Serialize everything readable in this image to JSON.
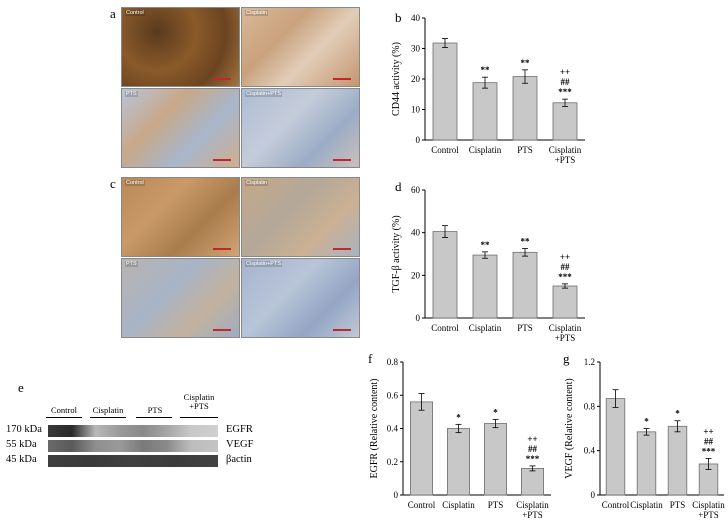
{
  "panels": {
    "a": "a",
    "b": "b",
    "c": "c",
    "d": "d",
    "e": "e",
    "f": "f",
    "g": "g"
  },
  "micro_labels": {
    "a": [
      "Control",
      "Cisplatin",
      "PTS",
      "Cisplatin+PTS"
    ],
    "c": [
      "Control",
      "Cisplatin",
      "PTS",
      "Cisplatin+PTS"
    ]
  },
  "blot": {
    "groups": [
      "Control",
      "Cisplatin",
      "PTS",
      "Cisplatin\n+PTS"
    ],
    "rows": [
      {
        "kda": "170 kDa",
        "protein": "EGFR"
      },
      {
        "kda": "55 kDa",
        "protein": "VEGF"
      },
      {
        "kda": "45 kDa",
        "protein": "βactin"
      }
    ]
  },
  "chart_data": [
    {
      "id": "b",
      "type": "bar",
      "categories": [
        "Control",
        "Cisplatin",
        "PTS",
        "Cisplatin\n+PTS"
      ],
      "values": [
        31.8,
        18.8,
        20.8,
        12.2
      ],
      "errors": [
        1.5,
        1.8,
        2.2,
        1.2
      ],
      "annotations": [
        "",
        "**",
        "**",
        "++\n##\n***"
      ],
      "ylabel": "CD44 activity (%)",
      "ylim": [
        0,
        40
      ],
      "yticks": [
        0,
        10,
        20,
        30,
        40
      ],
      "ytick_labels": [
        "0",
        "10",
        "20",
        "30",
        "40"
      ]
    },
    {
      "id": "d",
      "type": "bar",
      "categories": [
        "Control",
        "Cisplatin",
        "PTS",
        "Cisplatin\n+PTS"
      ],
      "values": [
        40.5,
        29.5,
        30.8,
        15.0
      ],
      "errors": [
        2.8,
        1.5,
        1.8,
        1.0
      ],
      "annotations": [
        "",
        "**",
        "**",
        "++\n##\n***"
      ],
      "ylabel": "TGF-β activity (%)",
      "ylim": [
        0,
        60
      ],
      "yticks": [
        0,
        20,
        40,
        60
      ],
      "ytick_labels": [
        "0",
        "20",
        "40",
        "60"
      ]
    },
    {
      "id": "f",
      "type": "bar",
      "categories": [
        "Control",
        "Cisplatin",
        "PTS",
        "Cisplatin\n+PTS"
      ],
      "values": [
        0.56,
        0.4,
        0.43,
        0.16
      ],
      "errors": [
        0.05,
        0.025,
        0.025,
        0.015
      ],
      "annotations": [
        "",
        "*",
        "*",
        "++\n##\n***"
      ],
      "ylabel": "EGFR (Relative content)",
      "ylim": [
        0,
        0.8
      ],
      "yticks": [
        0,
        0.2,
        0.4,
        0.6,
        0.8
      ],
      "ytick_labels": [
        "0",
        "0.2",
        "0.4",
        "0.6",
        "0.8"
      ]
    },
    {
      "id": "g",
      "type": "bar",
      "categories": [
        "Control",
        "Cisplatin",
        "PTS",
        "Cisplatin\n+PTS"
      ],
      "values": [
        0.87,
        0.57,
        0.62,
        0.28
      ],
      "errors": [
        0.08,
        0.03,
        0.05,
        0.05
      ],
      "annotations": [
        "",
        "*",
        "*",
        "++\n##\n***"
      ],
      "ylabel": "VEGF (Relative content)",
      "ylim": [
        0,
        1.2
      ],
      "yticks": [
        0,
        0.4,
        0.8,
        1.2
      ],
      "ytick_labels": [
        "0",
        "0.4",
        "0.8",
        "1.2"
      ]
    }
  ],
  "colors": {
    "bar_fill": "#c8c8c8",
    "bar_stroke": "#6e6e6e",
    "brown_stain": "#8a5a2a",
    "blue_stain": "#8fa4c6"
  }
}
